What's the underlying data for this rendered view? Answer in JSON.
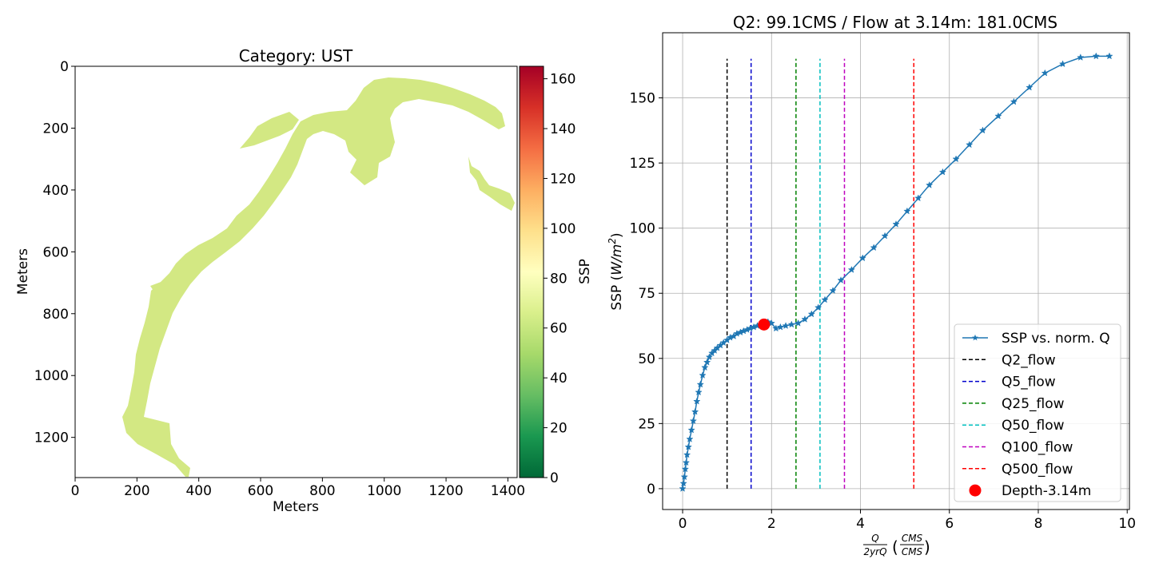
{
  "chart_data": [
    {
      "type": "heatmap",
      "title": "Category: UST",
      "xlabel": "Meters",
      "ylabel": "Meters",
      "xlim": [
        0,
        1430
      ],
      "ylim": [
        1330,
        0
      ],
      "y_inverted": true,
      "xticks": [
        0,
        200,
        400,
        600,
        800,
        1000,
        1200,
        1400
      ],
      "yticks": [
        0,
        200,
        400,
        600,
        800,
        1000,
        1200
      ],
      "fill_color": "#d3e883",
      "colorbar": {
        "label": "SSP",
        "range": [
          0,
          165
        ],
        "ticks": [
          0,
          20,
          40,
          60,
          80,
          100,
          120,
          140,
          160
        ],
        "colormap": "RdYlGn_r",
        "stops": [
          "#006837",
          "#1a9850",
          "#66bd63",
          "#a6d96a",
          "#d9ef8b",
          "#ffffbf",
          "#fee08b",
          "#fdae61",
          "#f46d43",
          "#d73027",
          "#a50026"
        ]
      },
      "region_value": 60
    },
    {
      "type": "line",
      "title": "Q2: 99.1CMS / Flow at 3.14m: 181.0CMS",
      "xlabel_main": "Q",
      "xlabel_sub": "2yrQ",
      "xlabel_unit_num": "CMS",
      "xlabel_unit_den": "CMS",
      "ylabel": "SSP",
      "ylabel_unit": "W/m",
      "ylabel_exp": "2",
      "xlim": [
        -0.45,
        10.05
      ],
      "ylim": [
        -8,
        175
      ],
      "xticks": [
        0,
        2,
        4,
        6,
        8,
        10
      ],
      "yticks": [
        0,
        25,
        50,
        75,
        100,
        125,
        150
      ],
      "grid": true,
      "legend_position": "lower right",
      "series": [
        {
          "name": "SSP vs. norm. Q",
          "color": "#1f77b4",
          "x": [
            0.0,
            0.02,
            0.04,
            0.06,
            0.08,
            0.1,
            0.13,
            0.16,
            0.2,
            0.24,
            0.28,
            0.32,
            0.36,
            0.4,
            0.45,
            0.5,
            0.55,
            0.6,
            0.66,
            0.72,
            0.78,
            0.85,
            0.92,
            1.0,
            1.07,
            1.15,
            1.22,
            1.3,
            1.37,
            1.45,
            1.52,
            1.6,
            1.68,
            1.76,
            1.84,
            1.92,
            2.0,
            2.1,
            2.2,
            2.32,
            2.45,
            2.6,
            2.75,
            2.9,
            3.05,
            3.2,
            3.38,
            3.56,
            3.8,
            4.05,
            4.3,
            4.55,
            4.8,
            5.05,
            5.3,
            5.55,
            5.85,
            6.15,
            6.45,
            6.75,
            7.1,
            7.45,
            7.8,
            8.15,
            8.55,
            8.95,
            9.3,
            9.6
          ],
          "y": [
            0,
            2,
            4.5,
            7.5,
            10,
            13,
            16,
            19,
            22.5,
            26,
            29.5,
            33.5,
            37,
            40,
            43.5,
            46.5,
            48.5,
            50.5,
            52,
            53,
            54,
            55,
            56,
            57,
            58,
            58.5,
            59.5,
            60,
            60.5,
            61,
            61.5,
            62,
            62.5,
            63,
            63.5,
            64,
            63.5,
            61.5,
            62,
            62.5,
            63,
            63.5,
            65,
            67,
            69.5,
            72.5,
            76,
            80,
            84,
            88.5,
            92.5,
            97,
            101.5,
            106.5,
            111.5,
            116.5,
            121.5,
            126.5,
            132,
            137.5,
            143,
            148.5,
            154,
            159.5,
            163,
            165.5,
            166,
            166
          ]
        }
      ],
      "vlines": [
        {
          "name": "Q2_flow",
          "x": 1.0,
          "color": "#000000"
        },
        {
          "name": "Q5_flow",
          "x": 1.54,
          "color": "#0000cc"
        },
        {
          "name": "Q25_flow",
          "x": 2.55,
          "color": "#008000"
        },
        {
          "name": "Q50_flow",
          "x": 3.09,
          "color": "#00bfbf"
        },
        {
          "name": "Q100_flow",
          "x": 3.64,
          "color": "#bf00bf"
        },
        {
          "name": "Q500_flow",
          "x": 5.2,
          "color": "#ff0000"
        }
      ],
      "vline_ymax": 165,
      "marker": {
        "name": "Depth-3.14m",
        "x": 1.83,
        "y": 63,
        "color": "#ff0000"
      }
    }
  ]
}
